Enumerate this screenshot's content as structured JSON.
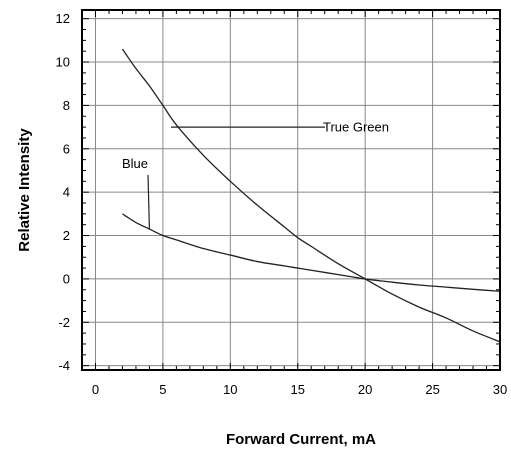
{
  "chart_data": {
    "type": "line",
    "title": "",
    "xlabel": "Forward Current, mA",
    "ylabel": "Relative Intensity",
    "xlim": [
      -1,
      30
    ],
    "ylim": [
      -4.2,
      12.4
    ],
    "grid": true,
    "x_ticks": [
      0,
      5,
      10,
      15,
      20,
      25,
      30
    ],
    "y_ticks": [
      -4,
      -2,
      0,
      2,
      4,
      6,
      8,
      10,
      12
    ],
    "series": [
      {
        "name": "True Green",
        "x": [
          2,
          3,
          4,
          5,
          6,
          8,
          10,
          12,
          14,
          15,
          16,
          18,
          20,
          22,
          24,
          26,
          28,
          30
        ],
        "values": [
          10.6,
          9.7,
          8.9,
          8.0,
          7.1,
          5.7,
          4.5,
          3.4,
          2.4,
          1.9,
          1.5,
          0.7,
          0.0,
          -0.7,
          -1.3,
          -1.8,
          -2.4,
          -2.9
        ]
      },
      {
        "name": "Blue",
        "x": [
          2,
          3,
          4,
          5,
          6,
          8,
          10,
          12,
          14,
          15,
          16,
          18,
          20,
          22,
          24,
          26,
          28,
          30
        ],
        "values": [
          3.0,
          2.6,
          2.3,
          2.0,
          1.8,
          1.4,
          1.1,
          0.8,
          0.6,
          0.5,
          0.4,
          0.2,
          0.0,
          -0.15,
          -0.28,
          -0.38,
          -0.48,
          -0.57
        ]
      }
    ],
    "annotations": [
      {
        "text": "True Green",
        "series": 0,
        "x": 5.6,
        "y": 7.0
      },
      {
        "text": "Blue",
        "series": 1,
        "x": 4.0,
        "y": 2.3
      }
    ]
  },
  "colors": {
    "axis": "#000000",
    "grid": "#888888",
    "line": "#222222"
  }
}
